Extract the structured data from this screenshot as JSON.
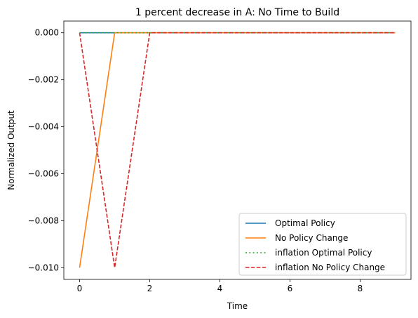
{
  "chart_data": {
    "type": "line",
    "title": "1 percent decrease in A: No Time to Build",
    "xlabel": "Time",
    "ylabel": "Normalized Output",
    "xlim": [
      -0.45,
      9.45
    ],
    "ylim": [
      -0.0105,
      0.0005
    ],
    "xticks": [
      0,
      2,
      4,
      6,
      8
    ],
    "xtick_labels": [
      "0",
      "2",
      "4",
      "6",
      "8"
    ],
    "yticks": [
      0.0,
      -0.002,
      -0.004,
      -0.006,
      -0.008,
      -0.01
    ],
    "ytick_labels": [
      "0.000",
      "−0.002",
      "−0.004",
      "−0.006",
      "−0.008",
      "−0.010"
    ],
    "grid": false,
    "legend_position": "lower-right",
    "x": [
      0,
      1,
      2,
      3,
      4,
      5,
      6,
      7,
      8,
      9
    ],
    "series": [
      {
        "name": "Optimal Policy",
        "color": "#1f77b4",
        "dash": "solid",
        "values": [
          0,
          0,
          0,
          0,
          0,
          0,
          0,
          0,
          0,
          0
        ]
      },
      {
        "name": "No Policy Change",
        "color": "#ff7f0e",
        "dash": "solid",
        "values": [
          -0.01,
          0,
          0,
          0,
          0,
          0,
          0,
          0,
          0,
          0
        ]
      },
      {
        "name": "inflation Optimal Policy",
        "color": "#2ca02c",
        "dash": "dotted",
        "values": [
          0,
          0,
          0,
          0,
          0,
          0,
          0,
          0,
          0,
          0
        ]
      },
      {
        "name": "inflation No Policy Change",
        "color": "#d62728",
        "dash": "dashed",
        "values": [
          0,
          -0.01,
          0,
          0,
          0,
          0,
          0,
          0,
          0,
          0
        ]
      }
    ]
  }
}
